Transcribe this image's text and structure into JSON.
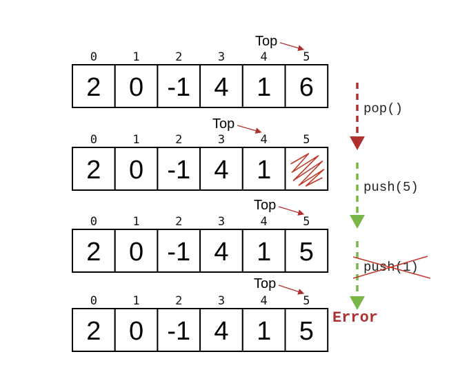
{
  "arrays": [
    {
      "indices": [
        "0",
        "1",
        "2",
        "3",
        "4",
        "5"
      ],
      "cells": [
        "2",
        "0",
        "-1",
        "4",
        "1",
        "6"
      ],
      "top_label": "Top",
      "top_index": 5,
      "scribbled": false
    },
    {
      "indices": [
        "0",
        "1",
        "2",
        "3",
        "4",
        "5"
      ],
      "cells": [
        "2",
        "0",
        "-1",
        "4",
        "1",
        ""
      ],
      "top_label": "Top",
      "top_index": 4,
      "scribbled": true
    },
    {
      "indices": [
        "0",
        "1",
        "2",
        "3",
        "4",
        "5"
      ],
      "cells": [
        "2",
        "0",
        "-1",
        "4",
        "1",
        "5"
      ],
      "top_label": "Top",
      "top_index": 5,
      "scribbled": false
    },
    {
      "indices": [
        "0",
        "1",
        "2",
        "3",
        "4",
        "5"
      ],
      "cells": [
        "2",
        "0",
        "-1",
        "4",
        "1",
        "5"
      ],
      "top_label": "Top",
      "top_index": 5,
      "scribbled": false
    }
  ],
  "operations": [
    {
      "label": "pop()",
      "color": "#b03030",
      "crossed": false
    },
    {
      "label": "push(5)",
      "color": "#7ab648",
      "crossed": false
    },
    {
      "label": "push(1)",
      "color": "#7ab648",
      "crossed": true
    }
  ],
  "error": {
    "label": "Error",
    "color": "#b03030"
  },
  "colors": {
    "top_arrow": "#b03030",
    "scribble": "#c0392b",
    "cross": "#c0392b"
  }
}
